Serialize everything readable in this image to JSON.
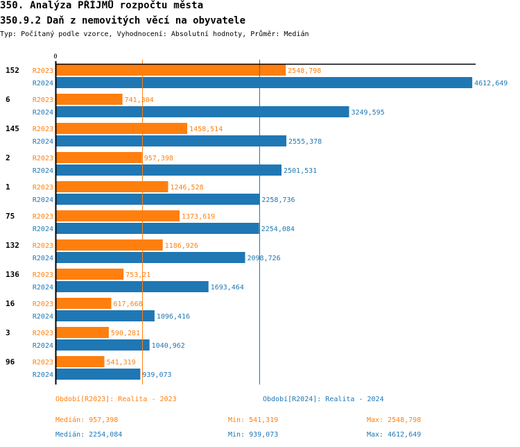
{
  "header": {
    "title": "350. Analýza PŘÍJMŮ rozpočtu města",
    "subtitle": "350.9.2 Daň z nemovitých věcí na obyvatele",
    "info": "Typ: Počítaný podle vzorce, Vyhodnocení: Absolutní hodnoty, Průměr: Medián"
  },
  "colors": {
    "r2023": "#ff7f0e",
    "r2024": "#1f77b4",
    "axis": "#000000"
  },
  "chart_data": {
    "type": "bar",
    "orientation": "horizontal",
    "title": "350.9.2 Daň z nemovitých věcí na obyvatele",
    "xlim": [
      0,
      4650
    ],
    "x_tick_labels": [
      "0"
    ],
    "categories": [
      "152",
      "6",
      "145",
      "2",
      "1",
      "75",
      "132",
      "136",
      "16",
      "3",
      "96"
    ],
    "series": [
      {
        "name": "R2023",
        "legend": "Období[R2023]: Realita - 2023",
        "values": [
          2548.798,
          741.304,
          1458.514,
          957.398,
          1246.528,
          1373.619,
          1186.926,
          753.21,
          617.668,
          590.281,
          541.319
        ],
        "labels": [
          "2548,798",
          "741,304",
          "1458,514",
          "957,398",
          "1246,528",
          "1373,619",
          "1186,926",
          "753,21",
          "617,668",
          "590,281",
          "541,319"
        ],
        "median": 957.398
      },
      {
        "name": "R2024",
        "legend": "Období[R2024]: Realita - 2024",
        "values": [
          4612.649,
          3249.595,
          2555.378,
          2501.531,
          2258.736,
          2254.084,
          2098.726,
          1693.464,
          1096.416,
          1040.962,
          939.073
        ],
        "labels": [
          "4612,649",
          "3249,595",
          "2555,378",
          "2501,531",
          "2258,736",
          "2254,084",
          "2098,726",
          "1693,464",
          "1096,416",
          "1040,962",
          "939,073"
        ],
        "median": 2254.084
      }
    ],
    "legend_position": "bottom"
  },
  "stats": {
    "r2023": {
      "median": "Medián: 957,398",
      "min": "Min: 541,319",
      "max": "Max: 2548,798"
    },
    "r2024": {
      "median": "Medián: 2254,084",
      "min": "Min: 939,073",
      "max": "Max: 4612,649"
    }
  }
}
